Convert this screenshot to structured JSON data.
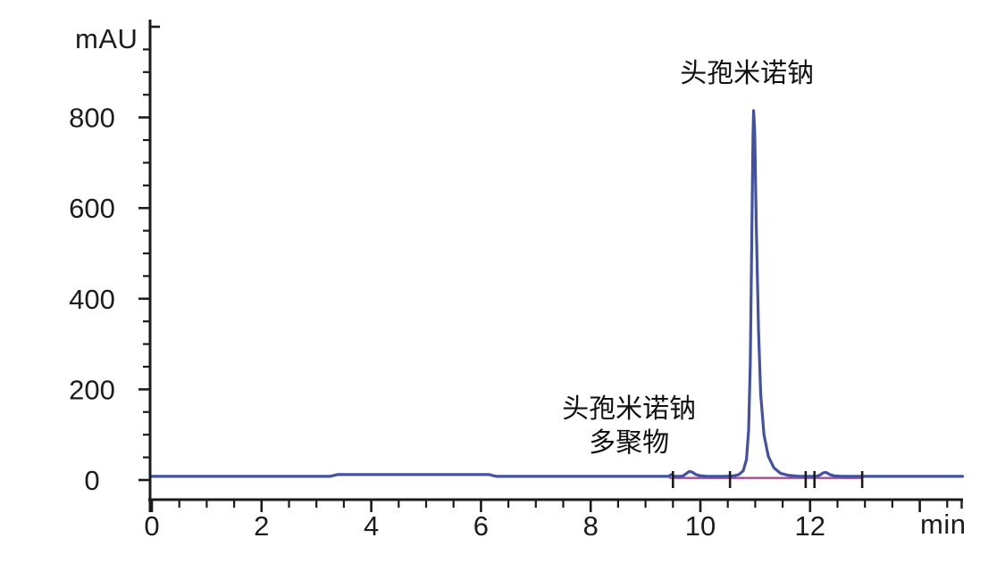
{
  "figure": {
    "background": "#ffffff",
    "axis_color": "#1b1b1b",
    "text_color": "#1c1c1e"
  },
  "chart_data": {
    "type": "line",
    "title": "",
    "xlabel": "min",
    "ylabel": "mAU",
    "grid": false,
    "legend": "none",
    "x_range": [
      0,
      14.8
    ],
    "y_range": [
      0,
      1010
    ],
    "x_labeled_ticks": [
      0,
      2,
      4,
      6,
      8,
      10,
      12
    ],
    "x_major_ticks": [
      0,
      2,
      4,
      6,
      8,
      10,
      12,
      14
    ],
    "x_minor_step": 0.5,
    "y_labeled_ticks": [
      0,
      200,
      400,
      600,
      800
    ],
    "y_major_ticks": [
      0,
      200,
      400,
      600,
      800,
      1000
    ],
    "y_minor_step": 50,
    "series": [
      {
        "name": "uv-signal",
        "color": "#4351a3",
        "stroke_width": 3.2,
        "points": [
          [
            0,
            8
          ],
          [
            3.25,
            8
          ],
          [
            3.38,
            12
          ],
          [
            6.15,
            12
          ],
          [
            6.28,
            8
          ],
          [
            9.42,
            8
          ],
          [
            9.47,
            12
          ],
          [
            9.52,
            8
          ],
          [
            9.62,
            8
          ],
          [
            9.68,
            9
          ],
          [
            9.74,
            14
          ],
          [
            9.8,
            19
          ],
          [
            9.86,
            17
          ],
          [
            9.92,
            12
          ],
          [
            10.0,
            9.5
          ],
          [
            10.12,
            8
          ],
          [
            10.45,
            8
          ],
          [
            10.6,
            9
          ],
          [
            10.7,
            12
          ],
          [
            10.78,
            20
          ],
          [
            10.84,
            45
          ],
          [
            10.88,
            110
          ],
          [
            10.91,
            260
          ],
          [
            10.94,
            560
          ],
          [
            10.96,
            760
          ],
          [
            10.97,
            815
          ],
          [
            10.99,
            770
          ],
          [
            11.02,
            560
          ],
          [
            11.06,
            330
          ],
          [
            11.1,
            190
          ],
          [
            11.16,
            100
          ],
          [
            11.24,
            52
          ],
          [
            11.34,
            27
          ],
          [
            11.46,
            15
          ],
          [
            11.6,
            10.5
          ],
          [
            11.78,
            8.5
          ],
          [
            12.0,
            8
          ],
          [
            12.12,
            8.5
          ],
          [
            12.18,
            11
          ],
          [
            12.24,
            16
          ],
          [
            12.29,
            17
          ],
          [
            12.36,
            12
          ],
          [
            12.45,
            9
          ],
          [
            12.58,
            8
          ],
          [
            14.78,
            8
          ]
        ]
      },
      {
        "name": "integration-baseline",
        "color": "#a2508e",
        "stroke_width": 2.4,
        "points": [
          [
            9.45,
            4.5
          ],
          [
            12.95,
            4.5
          ]
        ]
      }
    ],
    "peak_boundary_marks": {
      "color": "#1b1b1b",
      "x_minutes": [
        9.5,
        10.54,
        11.92,
        12.08,
        12.95
      ]
    },
    "peaks": [
      {
        "name": "头孢米诺钠",
        "retention_time_min": 11.0,
        "apex_mau": 815
      },
      {
        "name": "头孢米诺钠多聚物",
        "retention_time_min": 9.8,
        "apex_mau": 19
      },
      {
        "name": "unlabeled-minor-peak",
        "retention_time_min": 12.3,
        "apex_mau": 17
      }
    ],
    "annotations": [
      {
        "id": "main-peak-label",
        "lines": [
          "头孢米诺钠"
        ],
        "x_min": 10.85,
        "y_mau": 898
      },
      {
        "id": "polymer-peak-label",
        "lines": [
          "头孢米诺钠",
          "多聚物"
        ],
        "x_min": 8.7,
        "y_mau": 157
      }
    ]
  }
}
